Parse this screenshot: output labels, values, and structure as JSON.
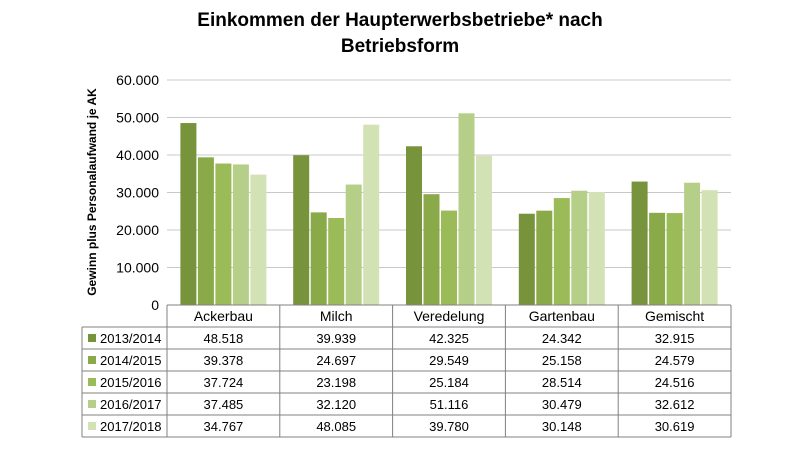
{
  "chart_data": {
    "type": "bar",
    "title": [
      "Einkommen der Haupterwerbsbetriebe* nach",
      "Betriebsform"
    ],
    "ylabel": "Gewinn plus Personalaufwand je AK",
    "xlabel": "",
    "categories": [
      "Ackerbau",
      "Milch",
      "Veredelung",
      "Gartenbau",
      "Gemischt"
    ],
    "ylim": [
      0,
      60000
    ],
    "yticks": [
      0,
      10000,
      20000,
      30000,
      40000,
      50000,
      60000
    ],
    "ytick_labels": [
      "0",
      "10.000",
      "20.000",
      "30.000",
      "40.000",
      "50.000",
      "60.000"
    ],
    "grid": true,
    "legend": "data-table-below",
    "series": [
      {
        "name": "2013/2014",
        "color": "#77933c",
        "values": [
          48518,
          39939,
          42325,
          24342,
          32915
        ],
        "labels": [
          "48.518",
          "39.939",
          "42.325",
          "24.342",
          "32.915"
        ]
      },
      {
        "name": "2014/2015",
        "color": "#8aaa4a",
        "values": [
          39378,
          24697,
          29549,
          25158,
          24579
        ],
        "labels": [
          "39.378",
          "24.697",
          "29.549",
          "25.158",
          "24.579"
        ]
      },
      {
        "name": "2015/2016",
        "color": "#9bbb59",
        "values": [
          37724,
          23198,
          25184,
          28514,
          24516
        ],
        "labels": [
          "37.724",
          "23.198",
          "25.184",
          "28.514",
          "24.516"
        ]
      },
      {
        "name": "2016/2017",
        "color": "#b6cf88",
        "values": [
          37485,
          32120,
          51116,
          30479,
          32612
        ],
        "labels": [
          "37.485",
          "32.120",
          "51.116",
          "30.479",
          "32.612"
        ]
      },
      {
        "name": "2017/2018",
        "color": "#d2e2b5",
        "values": [
          34767,
          48085,
          39780,
          30148,
          30619
        ],
        "labels": [
          "34.767",
          "48.085",
          "39.780",
          "30.148",
          "30.619"
        ]
      }
    ]
  }
}
